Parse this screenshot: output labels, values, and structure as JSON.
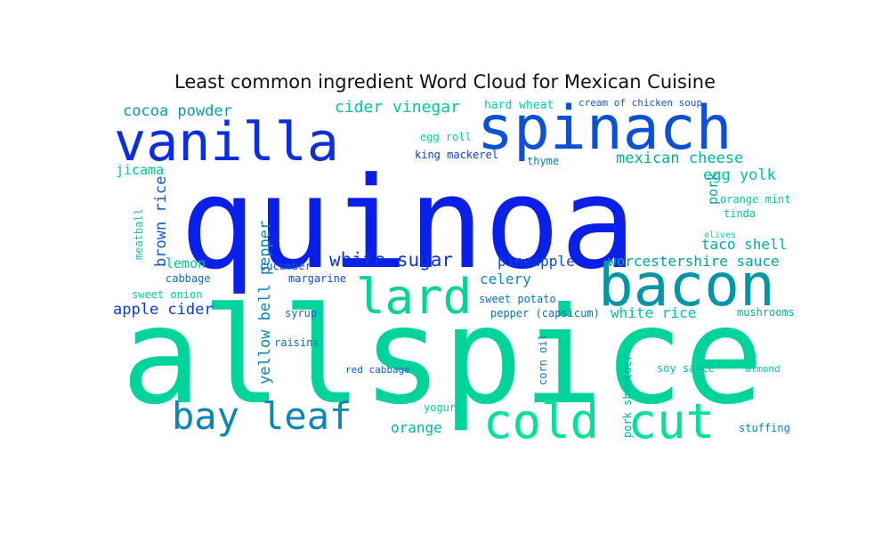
{
  "chart_data": {
    "type": "wordcloud",
    "title": "Least common ingredient Word Cloud for Mexican Cuisine",
    "words": [
      {
        "text": "allspice",
        "color": "#00d49a"
      },
      {
        "text": "quinoa",
        "color": "#0a1fe8"
      },
      {
        "text": "vanilla",
        "color": "#0a2ee0"
      },
      {
        "text": "spinach",
        "color": "#0a50d8"
      },
      {
        "text": "bacon",
        "color": "#0096a8"
      },
      {
        "text": "lard",
        "color": "#00d497"
      },
      {
        "text": "cold cut",
        "color": "#00e29a"
      },
      {
        "text": "bay leaf",
        "color": "#0a86b4"
      },
      {
        "text": "white sugar",
        "color": "#0a36d8"
      },
      {
        "text": "cider vinegar",
        "color": "#00c6a0"
      },
      {
        "text": "cocoa powder",
        "color": "#0a9ab4"
      },
      {
        "text": "mexican cheese",
        "color": "#00b29c"
      },
      {
        "text": "egg yolk",
        "color": "#00c29c"
      },
      {
        "text": "worcestershire sauce",
        "color": "#00a2ac"
      },
      {
        "text": "taco shell",
        "color": "#00aab0"
      },
      {
        "text": "brown rice",
        "color": "#0a58d0"
      },
      {
        "text": "apple cider",
        "color": "#0a3ad8"
      },
      {
        "text": "yellow bell pepper",
        "color": "#0a84b0"
      },
      {
        "text": "pineapple",
        "color": "#0a48d4"
      },
      {
        "text": "celery",
        "color": "#0a88b8"
      },
      {
        "text": "white rice",
        "color": "#00c0a4"
      },
      {
        "text": "lemon",
        "color": "#00c898"
      },
      {
        "text": "orange",
        "color": "#00b4a0"
      },
      {
        "text": "jicama",
        "color": "#00c4a0"
      },
      {
        "text": "pork",
        "color": "#0aa0b4"
      },
      {
        "text": "hard wheat",
        "color": "#00ccaa"
      },
      {
        "text": "cream of chicken soup",
        "color": "#0a5cd0"
      },
      {
        "text": "egg roll",
        "color": "#00d0a4"
      },
      {
        "text": "king mackerel",
        "color": "#0a40d8"
      },
      {
        "text": "thyme",
        "color": "#0a7cb8"
      },
      {
        "text": "orange mint",
        "color": "#00cca4"
      },
      {
        "text": "tinda",
        "color": "#00c0a8"
      },
      {
        "text": "olives",
        "color": "#00d0a0"
      },
      {
        "text": "meatball",
        "color": "#00cca8"
      },
      {
        "text": "cucumber",
        "color": "#0a50d0"
      },
      {
        "text": "margarine",
        "color": "#0a4ad8"
      },
      {
        "text": "cabbage",
        "color": "#0a6cc0"
      },
      {
        "text": "sweet onion",
        "color": "#00d0a0"
      },
      {
        "text": "sweet potato",
        "color": "#0a70c0"
      },
      {
        "text": "pepper (capsicum)",
        "color": "#0a70c0"
      },
      {
        "text": "mushrooms",
        "color": "#00aaac"
      },
      {
        "text": "syrup",
        "color": "#0a6cc4"
      },
      {
        "text": "raisins",
        "color": "#0a70c0"
      },
      {
        "text": "red cabbage",
        "color": "#0a5cd0"
      },
      {
        "text": "corn oil",
        "color": "#0a78c0"
      },
      {
        "text": "pork shoulder",
        "color": "#00b2a8"
      },
      {
        "text": "soy sauce",
        "color": "#00c0a8"
      },
      {
        "text": "almond",
        "color": "#00d0a0"
      },
      {
        "text": "yogurt",
        "color": "#00d0a0"
      },
      {
        "text": "stuffing",
        "color": "#0a80bc"
      }
    ]
  }
}
